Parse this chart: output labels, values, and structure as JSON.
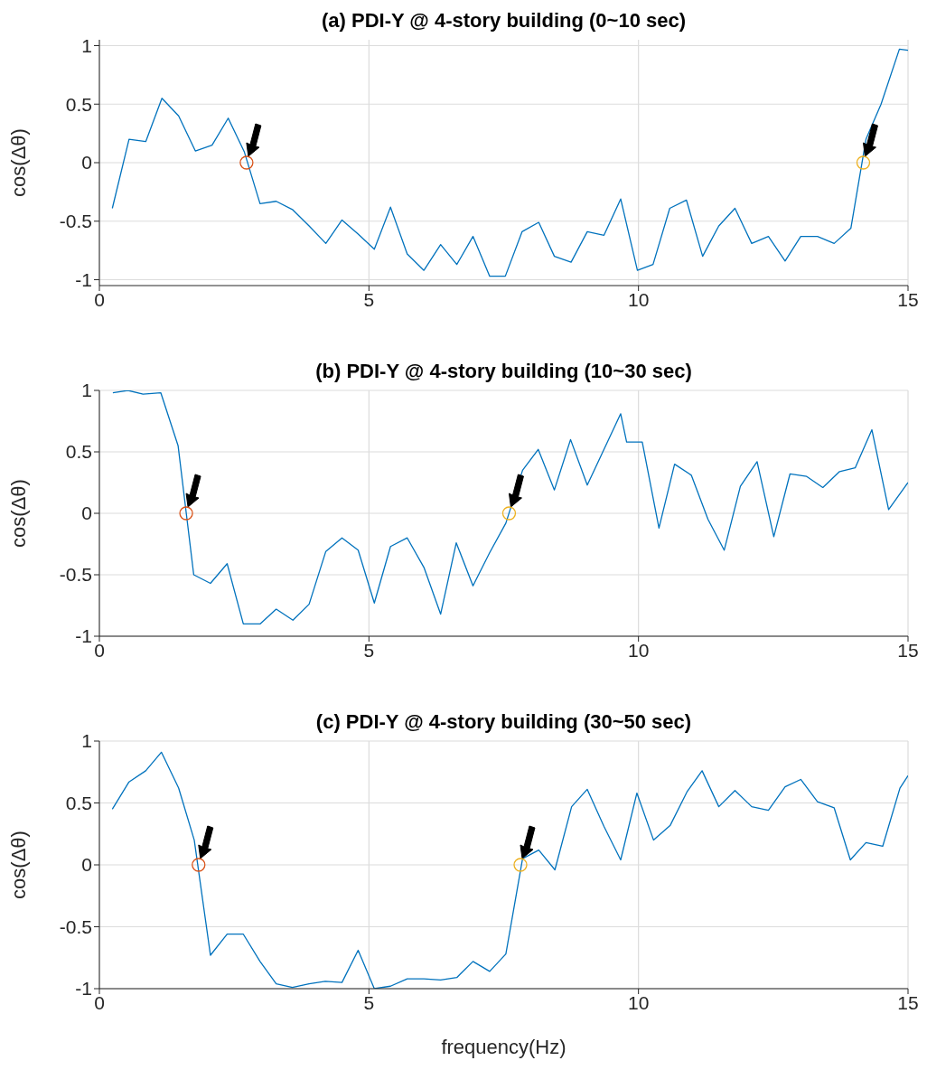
{
  "chart_data": [
    {
      "type": "line",
      "title": "(a) PDI-Y @ 4-story building (0~10 sec)",
      "ylabel": "cos(Δθ)",
      "xlim": [
        0,
        15
      ],
      "xticks": [
        0,
        5,
        10,
        15
      ],
      "ylim": [
        -1.05,
        1.05
      ],
      "yticks": [
        -1,
        -0.5,
        0,
        0.5,
        1
      ],
      "grid": true,
      "series": [
        {
          "color": "#0072bd",
          "x": [
            0.24,
            0.55,
            0.86,
            1.16,
            1.47,
            1.78,
            2.09,
            2.39,
            2.69,
            2.98,
            3.28,
            3.58,
            3.89,
            4.2,
            4.5,
            4.8,
            5.1,
            5.4,
            5.71,
            6.02,
            6.33,
            6.63,
            6.93,
            7.24,
            7.53,
            7.84,
            8.15,
            8.44,
            8.75,
            9.05,
            9.36,
            9.67,
            9.98,
            10.27,
            10.58,
            10.89,
            11.19,
            11.49,
            11.79,
            12.1,
            12.41,
            12.72,
            13.01,
            13.32,
            13.63,
            13.94,
            14.22,
            14.5,
            14.84,
            15
          ],
          "values": [
            -0.39,
            0.2,
            0.18,
            0.55,
            0.4,
            0.1,
            0.15,
            0.38,
            0.09,
            -0.35,
            -0.33,
            -0.4,
            -0.54,
            -0.69,
            -0.49,
            -0.61,
            -0.74,
            -0.38,
            -0.78,
            -0.92,
            -0.7,
            -0.87,
            -0.63,
            -0.97,
            -0.97,
            -0.59,
            -0.51,
            -0.8,
            -0.85,
            -0.59,
            -0.62,
            -0.31,
            -0.92,
            -0.87,
            -0.39,
            -0.32,
            -0.8,
            -0.54,
            -0.39,
            -0.69,
            -0.63,
            -0.84,
            -0.63,
            -0.63,
            -0.69,
            -0.56,
            0.2,
            0.5,
            0.97,
            0.96
          ]
        },
        {
          "type": "scatter",
          "marker": "circle",
          "color": "#d95319",
          "x": [
            2.73
          ],
          "values": [
            0
          ]
        },
        {
          "type": "scatter",
          "marker": "circle",
          "color": "#edb120",
          "x": [
            14.17
          ],
          "values": [
            0
          ]
        }
      ]
    },
    {
      "type": "line",
      "title": "(b) PDI-Y @ 4-story building (10~30 sec)",
      "ylabel": "cos(Δθ)",
      "xlim": [
        0,
        15
      ],
      "xticks": [
        0,
        5,
        10,
        15
      ],
      "ylim": [
        -1,
        1
      ],
      "yticks": [
        -1,
        -0.5,
        0,
        0.5,
        1
      ],
      "grid": true,
      "series": [
        {
          "color": "#0072bd",
          "x": [
            0.25,
            0.53,
            0.81,
            1.14,
            1.46,
            1.75,
            2.06,
            2.37,
            2.67,
            2.98,
            3.28,
            3.59,
            3.89,
            4.2,
            4.5,
            4.8,
            5.1,
            5.4,
            5.71,
            6.02,
            6.33,
            6.62,
            6.93,
            7.24,
            7.54,
            7.85,
            8.14,
            8.44,
            8.74,
            9.05,
            9.36,
            9.67,
            9.78,
            10.07,
            10.38,
            10.67,
            10.98,
            11.29,
            11.59,
            11.89,
            12.2,
            12.51,
            12.81,
            13.12,
            13.42,
            13.73,
            14.02,
            14.33,
            14.64,
            15
          ],
          "values": [
            0.98,
            1,
            0.97,
            0.98,
            0.55,
            -0.5,
            -0.57,
            -0.41,
            -0.9,
            -0.9,
            -0.78,
            -0.87,
            -0.74,
            -0.31,
            -0.2,
            -0.3,
            -0.73,
            -0.27,
            -0.2,
            -0.44,
            -0.82,
            -0.24,
            -0.59,
            -0.32,
            -0.08,
            0.35,
            0.52,
            0.19,
            0.6,
            0.23,
            0.52,
            0.81,
            0.58,
            0.58,
            -0.12,
            0.4,
            0.31,
            -0.05,
            -0.3,
            0.22,
            0.42,
            -0.19,
            0.32,
            0.3,
            0.21,
            0.34,
            0.37,
            0.68,
            0.03,
            0.25
          ]
        },
        {
          "type": "scatter",
          "marker": "circle",
          "color": "#d95319",
          "x": [
            1.61
          ],
          "values": [
            0
          ]
        },
        {
          "type": "scatter",
          "marker": "circle",
          "color": "#edb120",
          "x": [
            7.6
          ],
          "values": [
            0
          ]
        }
      ]
    },
    {
      "type": "line",
      "title": "(c) PDI-Y @ 4-story building (30~50 sec)",
      "xlabel": "frequency(Hz)",
      "ylabel": "cos(Δθ)",
      "xlim": [
        0,
        15
      ],
      "xticks": [
        0,
        5,
        10,
        15
      ],
      "ylim": [
        -1,
        1
      ],
      "yticks": [
        -1,
        -0.5,
        0,
        0.5,
        1
      ],
      "grid": true,
      "series": [
        {
          "color": "#0072bd",
          "x": [
            0.24,
            0.55,
            0.86,
            1.15,
            1.47,
            1.76,
            2.06,
            2.37,
            2.67,
            2.98,
            3.28,
            3.58,
            3.89,
            4.19,
            4.5,
            4.8,
            5.1,
            5.4,
            5.71,
            6.02,
            6.33,
            6.63,
            6.93,
            7.24,
            7.54,
            7.85,
            8.15,
            8.45,
            8.76,
            9.05,
            9.36,
            9.67,
            9.97,
            10.28,
            10.59,
            10.9,
            11.18,
            11.49,
            11.79,
            12.1,
            12.41,
            12.72,
            13.01,
            13.32,
            13.63,
            13.93,
            14.22,
            14.53,
            14.85,
            15
          ],
          "values": [
            0.45,
            0.67,
            0.76,
            0.91,
            0.62,
            0.2,
            -0.73,
            -0.56,
            -0.56,
            -0.78,
            -0.96,
            -0.99,
            -0.96,
            -0.94,
            -0.95,
            -0.69,
            -1,
            -0.98,
            -0.92,
            -0.92,
            -0.93,
            -0.91,
            -0.78,
            -0.86,
            -0.72,
            0.05,
            0.12,
            -0.04,
            0.47,
            0.61,
            0.31,
            0.04,
            0.58,
            0.2,
            0.32,
            0.59,
            0.76,
            0.47,
            0.6,
            0.47,
            0.44,
            0.63,
            0.69,
            0.51,
            0.46,
            0.04,
            0.18,
            0.15,
            0.62,
            0.72
          ]
        },
        {
          "type": "scatter",
          "marker": "circle",
          "color": "#d95319",
          "x": [
            1.84
          ],
          "values": [
            0
          ]
        },
        {
          "type": "scatter",
          "marker": "circle",
          "color": "#edb120",
          "x": [
            7.81
          ],
          "values": [
            0
          ]
        }
      ]
    }
  ]
}
